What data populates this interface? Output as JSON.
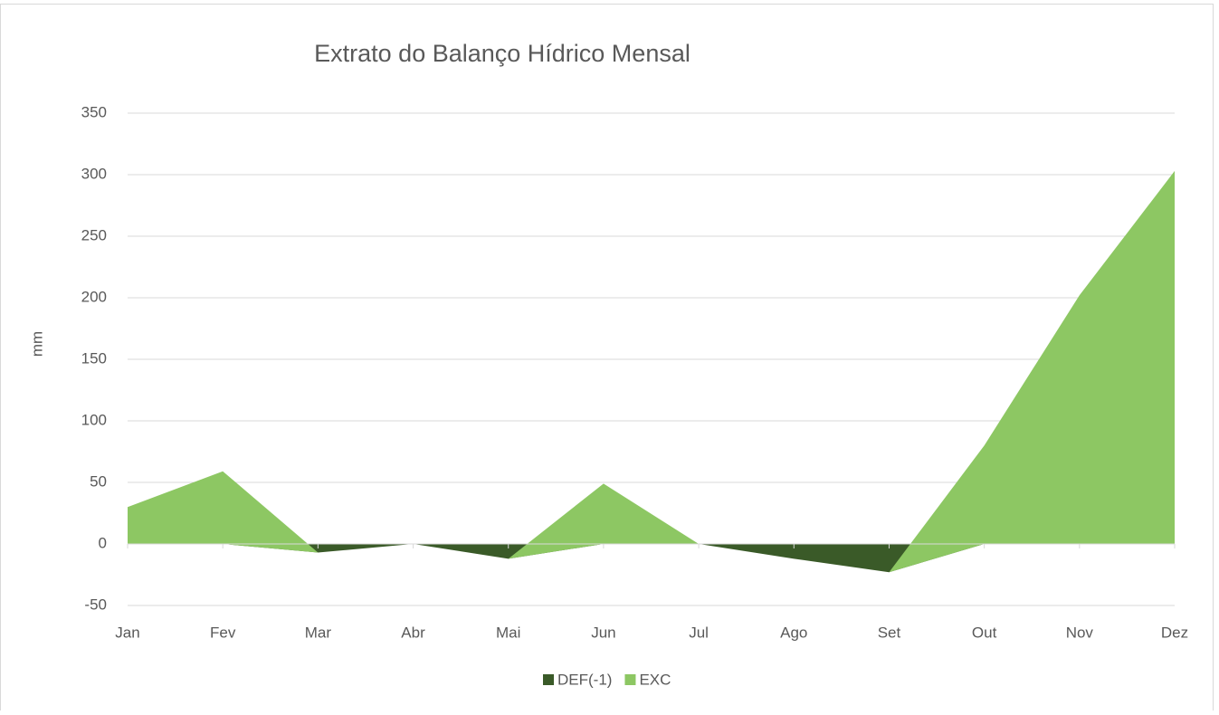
{
  "chart_data": {
    "type": "area",
    "stacked": true,
    "title": "Extrato do Balanço Hídrico Mensal",
    "y_label": "mm",
    "categories": [
      "Jan",
      "Fev",
      "Mar",
      "Abr",
      "Mai",
      "Jun",
      "Jul",
      "Ago",
      "Set",
      "Out",
      "Nov",
      "Dez"
    ],
    "series": [
      {
        "name": "DEF(-1)",
        "color": "#3a5a28",
        "values": [
          0,
          0,
          -7,
          0,
          -12,
          0,
          0,
          -12,
          -23,
          0,
          0,
          0
        ]
      },
      {
        "name": "EXC",
        "color": "#8dc763",
        "values": [
          30,
          59,
          0,
          0,
          0,
          49,
          0,
          0,
          0,
          80,
          202,
          303
        ]
      }
    ],
    "ylim": [
      -50,
      350
    ],
    "yticks": [
      -50,
      0,
      50,
      100,
      150,
      200,
      250,
      300,
      350
    ],
    "grid": true,
    "legend": "bottom"
  }
}
